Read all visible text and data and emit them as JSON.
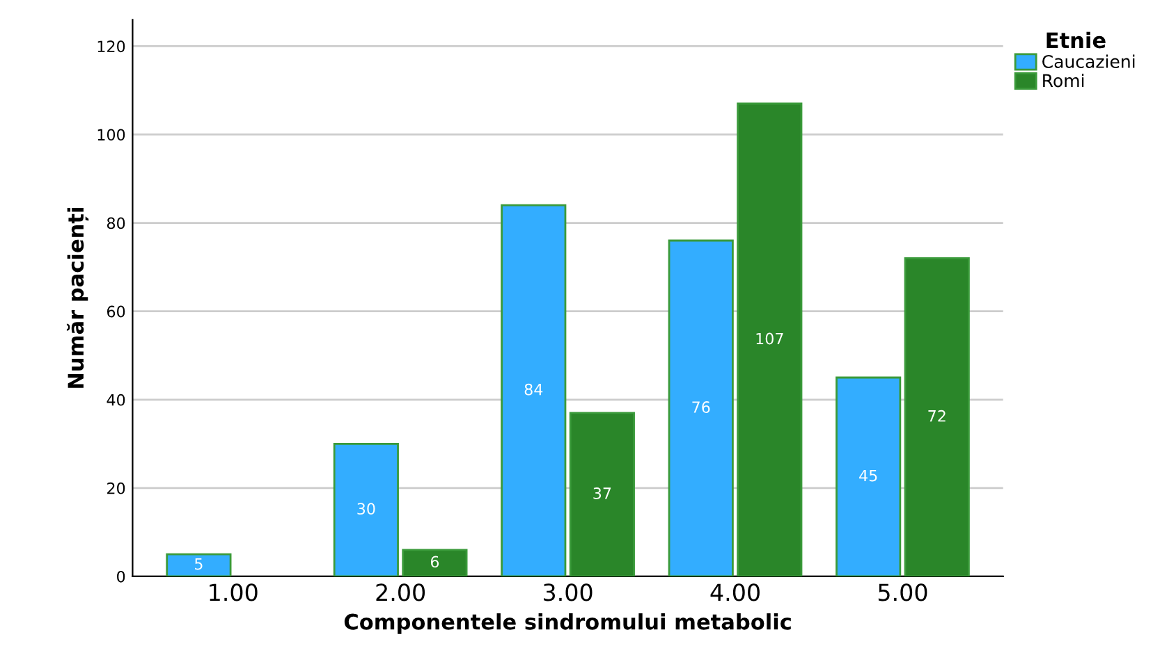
{
  "chart_data": {
    "type": "bar",
    "xlabel": "Componentele sindromului metabolic",
    "ylabel": "Număr pacienți",
    "legend_title": "Etnie",
    "categories": [
      "1.00",
      "2.00",
      "3.00",
      "4.00",
      "5.00"
    ],
    "series": [
      {
        "name": "Caucazieni",
        "color": "#33adff",
        "values": [
          5,
          30,
          84,
          76,
          45
        ]
      },
      {
        "name": "Romi",
        "color": "#2a8629",
        "values": [
          null,
          6,
          37,
          107,
          72
        ]
      }
    ],
    "ylim": [
      0,
      126
    ],
    "yticks": [
      0,
      20,
      40,
      60,
      80,
      100,
      120
    ],
    "grid": "y",
    "legend": "top right",
    "data_labels": true
  }
}
